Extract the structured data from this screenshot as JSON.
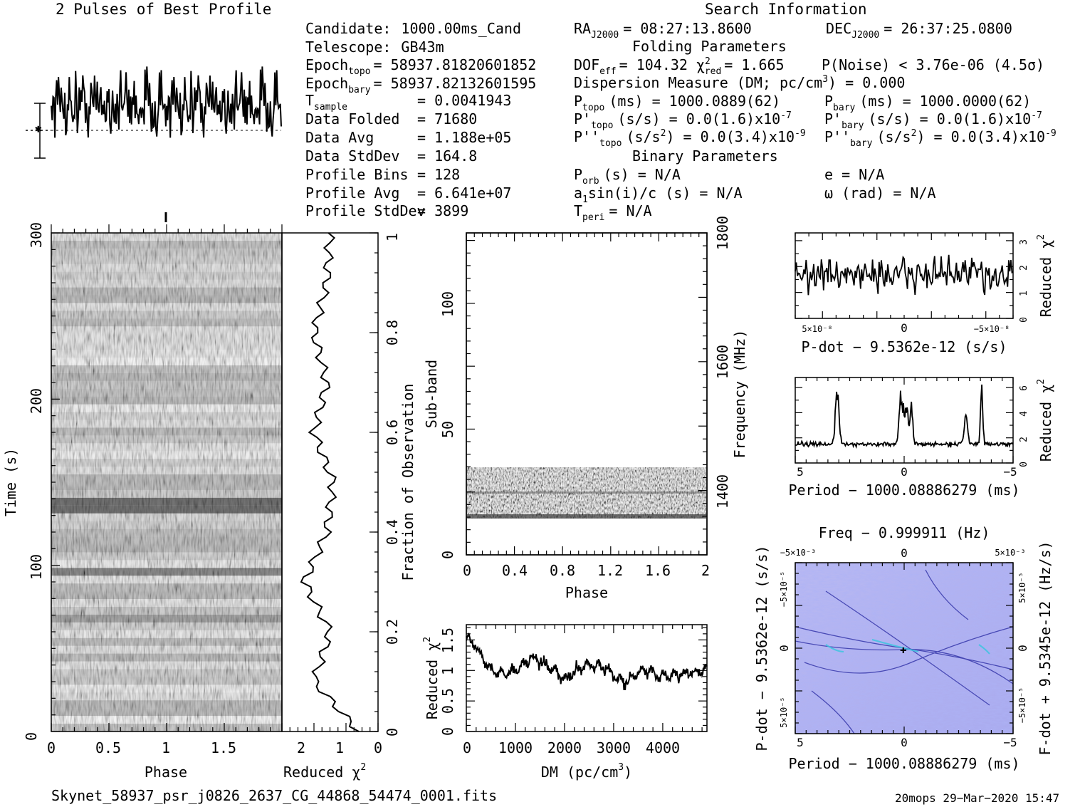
{
  "titles": {
    "profile": "2 Pulses of Best Profile",
    "search": "Search Information"
  },
  "info_left": [
    {
      "label": "Candidate:",
      "value": "1000.00ms_Cand"
    },
    {
      "label": "Telescope:",
      "value": "GB43m"
    },
    {
      "label": "Epoch",
      "sub": "topo",
      "value": "= 58937.81820601852"
    },
    {
      "label": "Epoch",
      "sub": "bary",
      "value": "= 58937.82132601595"
    },
    {
      "label": "T",
      "sub": "sample",
      "value": "=   0.0041943"
    },
    {
      "label": "Data Folded",
      "value": "=   71680"
    },
    {
      "label": "Data Avg",
      "value": "=   1.188e+05"
    },
    {
      "label": "Data StdDev",
      "value": "=   164.8"
    },
    {
      "label": "Profile Bins",
      "value": "=   128"
    },
    {
      "label": "Profile Avg",
      "value": "=   6.641e+07"
    },
    {
      "label": "Profile StdDev",
      "value": "=   3899"
    }
  ],
  "info_right": {
    "ra_label": "RA",
    "ra_sub": "J2000",
    "ra_value": "= 08:27:13.8600",
    "dec_label": "DEC",
    "dec_sub": "J2000",
    "dec_value": "= 26:37:25.0800",
    "folding_title": "Folding Parameters",
    "dof_label": "DOF",
    "dof_sub": "eff",
    "dof_value": "= 104.32",
    "chi_label": "χ",
    "chi_sup": "2",
    "chi_sub": "red",
    "chi_value": "= 1.665",
    "pnoise": "P(Noise) < 3.76e-06  (4.5σ)",
    "dm_line": "Dispersion Measure (DM; pc/cm",
    "dm_sup": "3",
    "dm_value": ") = 0.000",
    "ptopo": "(ms) =  1000.0889(62)",
    "pbary": "(ms) =  1000.0000(62)",
    "pdtopo": "(s/s) = 0.0(1.6)x10",
    "pdbary": "(s/s) = 0.0(1.6)x10",
    "pd_exp": "-7",
    "pddtopo": "(s/s",
    "pddbary": "(s/s",
    "pdd_tail": ") = 0.0(3.4)x10",
    "pdd_exp": "-9",
    "binary_title": "Binary Parameters",
    "porb": "(s) = N/A",
    "ecc": "e = N/A",
    "a1sini": "a",
    "a1sini_tail": "sin(i)/c (s) = N/A",
    "omega": "ω (rad) = N/A",
    "tperi": "= N/A"
  },
  "axes": {
    "time_label": "Time (s)",
    "phase_label": "Phase",
    "redchi_label": "Reduced χ",
    "frac_label": "Fraction of Observation",
    "subband_label": "Sub-band",
    "freq_label": "Frequency (MHz)",
    "dm_axis_label": "DM (pc/cm",
    "pdot_xlabel": "P-dot − 9.5362e-12 (s/s)",
    "period_xlabel": "Period − 1000.08886279 (ms)",
    "freq_title": "Freq − 0.999911 (Hz)",
    "pdot_ylabel": "P-dot − 9.5362e-12 (s/s)",
    "fdot_ylabel": "F-dot + 9.5345e-12 (Hz/s)",
    "time_ticks": [
      "0",
      "100",
      "200",
      "300"
    ],
    "phase_ticks": [
      "0",
      "0.5",
      "1",
      "1.5"
    ],
    "chi_ticks": [
      "2",
      "1",
      "0"
    ],
    "frac_ticks": [
      "0",
      "0.2",
      "0.4",
      "0.6",
      "0.8",
      "1"
    ],
    "subband_ticks": [
      "0",
      "50",
      "100"
    ],
    "sub_phase_ticks": [
      "0",
      "0.4",
      "0.8",
      "1.2",
      "1.6",
      "2"
    ],
    "freq_ticks": [
      "1400",
      "1600",
      "1800"
    ],
    "dm_ticks": [
      "0",
      "1000",
      "2000",
      "3000",
      "4000"
    ],
    "dm_chi_ticks": [
      "0",
      "0.5",
      "1",
      "1.5"
    ],
    "pdot_ticks": [
      "5×10⁻⁸",
      "0",
      "−5×10⁻⁸"
    ],
    "pdot_chi_ticks": [
      "0",
      "1",
      "2",
      "3"
    ],
    "period_ticks": [
      "5",
      "0",
      "−5"
    ],
    "period_chi_ticks": [
      "0",
      "2",
      "4",
      "6"
    ],
    "top_freq_ticks": [
      "−5×10⁻³",
      "0",
      "5×10⁻³"
    ],
    "pp_left_ticks": [
      "−5×10⁻⁵",
      "0",
      "5×10⁻⁵"
    ],
    "pp_right_ticks": [
      "5×10⁻⁵",
      "0",
      "−5×10⁻⁵"
    ]
  },
  "footer": {
    "filename": "Skynet_58937_psr_j0826_2637_CG_44868_54474_0001.fits",
    "stamp": "20mops 29−Mar−2020 15:47"
  },
  "chart_data": [
    {
      "type": "line",
      "title": "2 Pulses of Best Profile",
      "x_range": [
        0,
        2
      ],
      "note_values": "noisy profile, no significant pulse"
    },
    {
      "type": "heatmap",
      "xlabel": "Phase",
      "ylabel": "Time (s)",
      "xlim": [
        0,
        2
      ],
      "ylim": [
        0,
        300
      ]
    },
    {
      "type": "line",
      "xlabel": "Reduced χ2",
      "xlim": [
        0,
        3
      ],
      "y": [
        0.0,
        0.1,
        0.2,
        0.3,
        0.4,
        0.5,
        0.6,
        0.7,
        0.8,
        0.9,
        1.0
      ],
      "x": [
        0.6,
        2.0,
        1.5,
        2.3,
        1.6,
        1.4,
        2.0,
        1.6,
        2.0,
        1.6,
        1.5
      ]
    },
    {
      "type": "heatmap",
      "xlabel": "Phase",
      "ylabel": "Sub-band",
      "xlim": [
        0,
        2
      ],
      "ylim": [
        0,
        128
      ],
      "y2label": "Frequency (MHz)",
      "y2lim": [
        1300,
        1800
      ]
    },
    {
      "type": "line",
      "xlabel": "DM (pc/cm3)",
      "ylabel": "Reduced χ2",
      "xlim": [
        0,
        4900
      ],
      "ylim": [
        0,
        1.75
      ],
      "x": [
        0,
        200,
        500,
        700,
        1000,
        1300,
        1600,
        2000,
        2400,
        2800,
        3200,
        3600,
        4000,
        4400,
        4900
      ],
      "y": [
        1.5,
        1.4,
        1.0,
        0.95,
        1.0,
        1.2,
        1.1,
        0.85,
        1.1,
        1.05,
        0.8,
        1.0,
        0.9,
        0.95,
        1.0
      ]
    },
    {
      "type": "line",
      "xlabel": "P-dot − 9.5362e-12 (s/s)",
      "ylabel": "Reduced χ2",
      "xlim": [
        8.5e-08,
        -8.5e-08
      ],
      "ylim": [
        0,
        3.3
      ],
      "series_level": 1.7
    },
    {
      "type": "line",
      "xlabel": "Period − 1000.08886279 (ms)",
      "ylabel": "Reduced χ2",
      "xlim": [
        5.2,
        -5.2
      ],
      "ylim": [
        0,
        6.8
      ],
      "x": [
        5.0,
        3.5,
        3.2,
        3.0,
        0.2,
        0.0,
        -0.3,
        -2.8,
        -3.0,
        -3.7,
        -3.8,
        -5.0
      ],
      "y": [
        1.5,
        1.6,
        5.5,
        2.0,
        5.5,
        4.5,
        5.0,
        3.5,
        2.0,
        5.8,
        2.5,
        1.6
      ]
    },
    {
      "type": "heatmap",
      "title": "Freq − 0.999911 (Hz)",
      "xlabel": "Period − 1000.08886279 (ms)",
      "ylabel": "P-dot − 9.5362e-12 (s/s)",
      "y2label": "F-dot + 9.5345e-12 (Hz/s)",
      "xlim": [
        5.2,
        -5.2
      ],
      "ylim": [
        -8e-05,
        8e-05
      ]
    }
  ]
}
